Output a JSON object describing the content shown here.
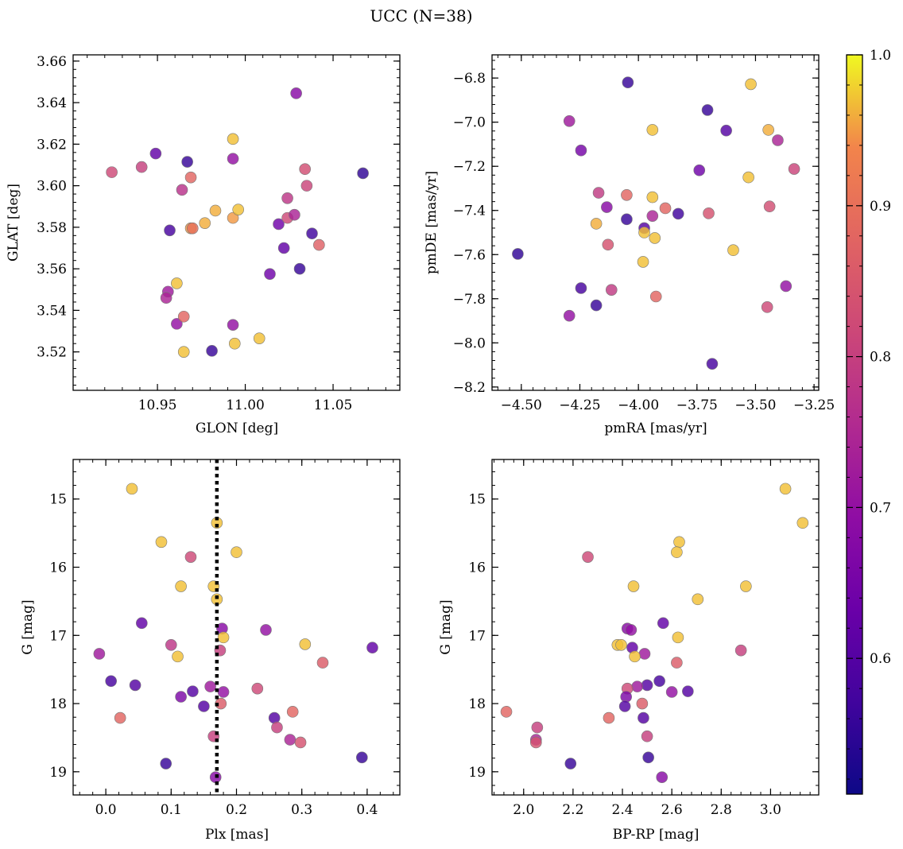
{
  "figure": {
    "title": "UCC (N=38)",
    "colormap": "plasma",
    "colorbar": {
      "min": 0.51,
      "max": 1.0,
      "ticks": [
        "0.6",
        "0.7",
        "0.8",
        "0.9",
        "1.0"
      ]
    }
  },
  "chart_data": [
    {
      "type": "scatter",
      "xlabel": "GLON [deg]",
      "ylabel": "GLAT [deg]",
      "xlim": [
        10.902,
        11.088
      ],
      "ylim": [
        3.5015,
        3.663
      ],
      "xticks": [
        "10.95",
        "11.00",
        "11.05"
      ],
      "yticks": [
        "3.52",
        "3.54",
        "3.56",
        "3.58",
        "3.60",
        "3.62",
        "3.64",
        "3.66"
      ],
      "points": [
        {
          "x": 10.924,
          "y": 3.6065,
          "c": 0.82
        },
        {
          "x": 10.941,
          "y": 3.609,
          "c": 0.8
        },
        {
          "x": 10.949,
          "y": 3.6155,
          "c": 0.62
        },
        {
          "x": 10.967,
          "y": 3.6115,
          "c": 0.56
        },
        {
          "x": 10.964,
          "y": 3.598,
          "c": 0.77
        },
        {
          "x": 10.969,
          "y": 3.604,
          "c": 0.88
        },
        {
          "x": 10.957,
          "y": 3.5785,
          "c": 0.58
        },
        {
          "x": 10.969,
          "y": 3.5795,
          "c": 0.95
        },
        {
          "x": 10.97,
          "y": 3.5795,
          "c": 0.9
        },
        {
          "x": 10.977,
          "y": 3.582,
          "c": 0.96
        },
        {
          "x": 10.983,
          "y": 3.588,
          "c": 0.96
        },
        {
          "x": 10.993,
          "y": 3.6225,
          "c": 0.97
        },
        {
          "x": 10.993,
          "y": 3.613,
          "c": 0.7
        },
        {
          "x": 10.993,
          "y": 3.5845,
          "c": 0.95
        },
        {
          "x": 10.996,
          "y": 3.5885,
          "c": 0.97
        },
        {
          "x": 10.961,
          "y": 3.553,
          "c": 0.97
        },
        {
          "x": 10.956,
          "y": 3.549,
          "c": 0.72
        },
        {
          "x": 10.955,
          "y": 3.546,
          "c": 0.74
        },
        {
          "x": 10.961,
          "y": 3.5335,
          "c": 0.7
        },
        {
          "x": 10.965,
          "y": 3.537,
          "c": 0.88
        },
        {
          "x": 10.965,
          "y": 3.52,
          "c": 0.97
        },
        {
          "x": 10.981,
          "y": 3.5205,
          "c": 0.56
        },
        {
          "x": 10.993,
          "y": 3.533,
          "c": 0.7
        },
        {
          "x": 10.994,
          "y": 3.524,
          "c": 0.97
        },
        {
          "x": 11.008,
          "y": 3.5265,
          "c": 0.97
        },
        {
          "x": 11.014,
          "y": 3.5575,
          "c": 0.64
        },
        {
          "x": 11.019,
          "y": 3.5815,
          "c": 0.64
        },
        {
          "x": 11.022,
          "y": 3.57,
          "c": 0.62
        },
        {
          "x": 11.024,
          "y": 3.594,
          "c": 0.78
        },
        {
          "x": 11.024,
          "y": 3.5845,
          "c": 0.82
        },
        {
          "x": 11.028,
          "y": 3.586,
          "c": 0.74
        },
        {
          "x": 11.029,
          "y": 3.6445,
          "c": 0.68
        },
        {
          "x": 11.031,
          "y": 3.56,
          "c": 0.56
        },
        {
          "x": 11.034,
          "y": 3.608,
          "c": 0.83
        },
        {
          "x": 11.035,
          "y": 3.6,
          "c": 0.81
        },
        {
          "x": 11.038,
          "y": 3.577,
          "c": 0.57
        },
        {
          "x": 11.042,
          "y": 3.5715,
          "c": 0.87
        },
        {
          "x": 11.067,
          "y": 3.606,
          "c": 0.55
        }
      ]
    },
    {
      "type": "scatter",
      "xlabel": "pmRA [mas/yr]",
      "ylabel": "pmDE [mas/yr]",
      "xlim": [
        -4.625,
        -3.23
      ],
      "ylim": [
        -8.215,
        -6.695
      ],
      "xticks": [
        "−4.50",
        "−4.25",
        "−4.00",
        "−3.75",
        "−3.50",
        "−3.25"
      ],
      "yticks": [
        "−8.2",
        "−8.0",
        "−7.8",
        "−7.6",
        "−7.4",
        "−7.2",
        "−7.0",
        "−6.8"
      ],
      "points": [
        {
          "x": -4.515,
          "y": -7.597,
          "c": 0.55
        },
        {
          "x": -4.295,
          "y": -6.995,
          "c": 0.72
        },
        {
          "x": -4.295,
          "y": -7.877,
          "c": 0.7
        },
        {
          "x": -4.245,
          "y": -7.128,
          "c": 0.65
        },
        {
          "x": -4.245,
          "y": -7.752,
          "c": 0.58
        },
        {
          "x": -4.17,
          "y": -7.32,
          "c": 0.79
        },
        {
          "x": -4.18,
          "y": -7.46,
          "c": 0.96
        },
        {
          "x": -4.135,
          "y": -7.385,
          "c": 0.68
        },
        {
          "x": -4.13,
          "y": -7.555,
          "c": 0.84
        },
        {
          "x": -4.115,
          "y": -7.76,
          "c": 0.79
        },
        {
          "x": -4.18,
          "y": -7.83,
          "c": 0.56
        },
        {
          "x": -4.045,
          "y": -6.82,
          "c": 0.56
        },
        {
          "x": -4.05,
          "y": -7.33,
          "c": 0.88
        },
        {
          "x": -4.05,
          "y": -7.44,
          "c": 0.56
        },
        {
          "x": -3.975,
          "y": -7.48,
          "c": 0.6
        },
        {
          "x": -3.975,
          "y": -7.5,
          "c": 0.97
        },
        {
          "x": -3.98,
          "y": -7.633,
          "c": 0.97
        },
        {
          "x": -3.94,
          "y": -7.035,
          "c": 0.97
        },
        {
          "x": -3.94,
          "y": -7.34,
          "c": 0.97
        },
        {
          "x": -3.94,
          "y": -7.425,
          "c": 0.74
        },
        {
          "x": -3.93,
          "y": -7.525,
          "c": 0.97
        },
        {
          "x": -3.925,
          "y": -7.79,
          "c": 0.88
        },
        {
          "x": -3.885,
          "y": -7.39,
          "c": 0.88
        },
        {
          "x": -3.83,
          "y": -7.415,
          "c": 0.57
        },
        {
          "x": -3.74,
          "y": -7.218,
          "c": 0.64
        },
        {
          "x": -3.705,
          "y": -6.945,
          "c": 0.56
        },
        {
          "x": -3.7,
          "y": -7.413,
          "c": 0.84
        },
        {
          "x": -3.685,
          "y": -8.095,
          "c": 0.58
        },
        {
          "x": -3.625,
          "y": -7.038,
          "c": 0.6
        },
        {
          "x": -3.595,
          "y": -7.58,
          "c": 0.97
        },
        {
          "x": -3.52,
          "y": -6.828,
          "c": 0.97
        },
        {
          "x": -3.53,
          "y": -7.25,
          "c": 0.97
        },
        {
          "x": -3.445,
          "y": -7.035,
          "c": 0.96
        },
        {
          "x": -3.45,
          "y": -7.838,
          "c": 0.82
        },
        {
          "x": -3.44,
          "y": -7.382,
          "c": 0.83
        },
        {
          "x": -3.405,
          "y": -7.082,
          "c": 0.74
        },
        {
          "x": -3.37,
          "y": -7.743,
          "c": 0.7
        },
        {
          "x": -3.335,
          "y": -7.212,
          "c": 0.81
        }
      ]
    },
    {
      "type": "scatter",
      "xlabel": "Plx [mas]",
      "ylabel": "G [mag]",
      "xlim": [
        -0.05,
        0.45
      ],
      "ylim": [
        19.34,
        14.42
      ],
      "xticks": [
        "0.0",
        "0.1",
        "0.2",
        "0.3",
        "0.4"
      ],
      "yticks": [
        "15",
        "16",
        "17",
        "18",
        "19"
      ],
      "vline": {
        "x": 0.17,
        "style": "dotted"
      },
      "points": [
        {
          "x": 0.04,
          "y": 14.85,
          "c": 0.97
        },
        {
          "x": 0.085,
          "y": 15.63,
          "c": 0.97
        },
        {
          "x": 0.17,
          "y": 15.35,
          "c": 0.97
        },
        {
          "x": 0.2,
          "y": 15.78,
          "c": 0.97
        },
        {
          "x": 0.13,
          "y": 15.85,
          "c": 0.82
        },
        {
          "x": 0.115,
          "y": 16.28,
          "c": 0.97
        },
        {
          "x": 0.165,
          "y": 16.28,
          "c": 0.97
        },
        {
          "x": 0.17,
          "y": 16.47,
          "c": 0.97
        },
        {
          "x": 0.055,
          "y": 16.82,
          "c": 0.62
        },
        {
          "x": 0.178,
          "y": 16.9,
          "c": 0.68
        },
        {
          "x": 0.245,
          "y": 16.92,
          "c": 0.7
        },
        {
          "x": 0.18,
          "y": 17.03,
          "c": 0.97
        },
        {
          "x": 0.1,
          "y": 17.14,
          "c": 0.78
        },
        {
          "x": 0.175,
          "y": 17.22,
          "c": 0.8
        },
        {
          "x": 0.305,
          "y": 17.13,
          "c": 0.97
        },
        {
          "x": 0.408,
          "y": 17.18,
          "c": 0.62
        },
        {
          "x": -0.01,
          "y": 17.27,
          "c": 0.72
        },
        {
          "x": 0.11,
          "y": 17.31,
          "c": 0.97
        },
        {
          "x": 0.332,
          "y": 17.4,
          "c": 0.86
        },
        {
          "x": 0.008,
          "y": 17.67,
          "c": 0.58
        },
        {
          "x": 0.045,
          "y": 17.73,
          "c": 0.6
        },
        {
          "x": 0.16,
          "y": 17.75,
          "c": 0.72
        },
        {
          "x": 0.133,
          "y": 17.82,
          "c": 0.6
        },
        {
          "x": 0.18,
          "y": 17.83,
          "c": 0.7
        },
        {
          "x": 0.232,
          "y": 17.78,
          "c": 0.82
        },
        {
          "x": 0.115,
          "y": 17.9,
          "c": 0.66
        },
        {
          "x": 0.15,
          "y": 18.04,
          "c": 0.6
        },
        {
          "x": 0.176,
          "y": 18.0,
          "c": 0.86
        },
        {
          "x": 0.022,
          "y": 18.21,
          "c": 0.88
        },
        {
          "x": 0.258,
          "y": 18.21,
          "c": 0.6
        },
        {
          "x": 0.262,
          "y": 18.35,
          "c": 0.8
        },
        {
          "x": 0.286,
          "y": 18.12,
          "c": 0.88
        },
        {
          "x": 0.165,
          "y": 18.48,
          "c": 0.8
        },
        {
          "x": 0.282,
          "y": 18.53,
          "c": 0.74
        },
        {
          "x": 0.298,
          "y": 18.57,
          "c": 0.84
        },
        {
          "x": 0.092,
          "y": 18.88,
          "c": 0.56
        },
        {
          "x": 0.392,
          "y": 18.79,
          "c": 0.56
        },
        {
          "x": 0.168,
          "y": 19.08,
          "c": 0.68
        }
      ]
    },
    {
      "type": "scatter",
      "xlabel": "BP-RP [mag]",
      "ylabel": "G [mag]",
      "xlim": [
        1.872,
        3.195
      ],
      "ylim": [
        19.34,
        14.42
      ],
      "xticks": [
        "2.0",
        "2.2",
        "2.4",
        "2.6",
        "2.8",
        "3.0"
      ],
      "yticks": [
        "15",
        "16",
        "17",
        "18",
        "19"
      ],
      "points": [
        {
          "x": 3.06,
          "y": 14.85,
          "c": 0.97
        },
        {
          "x": 3.13,
          "y": 15.35,
          "c": 0.97
        },
        {
          "x": 2.63,
          "y": 15.63,
          "c": 0.97
        },
        {
          "x": 2.62,
          "y": 15.78,
          "c": 0.97
        },
        {
          "x": 2.26,
          "y": 15.85,
          "c": 0.82
        },
        {
          "x": 2.445,
          "y": 16.28,
          "c": 0.97
        },
        {
          "x": 2.9,
          "y": 16.28,
          "c": 0.97
        },
        {
          "x": 2.705,
          "y": 16.47,
          "c": 0.97
        },
        {
          "x": 2.565,
          "y": 16.82,
          "c": 0.62
        },
        {
          "x": 2.42,
          "y": 16.9,
          "c": 0.68
        },
        {
          "x": 2.435,
          "y": 16.92,
          "c": 0.7
        },
        {
          "x": 2.625,
          "y": 17.03,
          "c": 0.97
        },
        {
          "x": 2.38,
          "y": 17.14,
          "c": 0.97
        },
        {
          "x": 2.395,
          "y": 17.14,
          "c": 0.97
        },
        {
          "x": 2.44,
          "y": 17.18,
          "c": 0.62
        },
        {
          "x": 2.88,
          "y": 17.22,
          "c": 0.8
        },
        {
          "x": 2.49,
          "y": 17.27,
          "c": 0.72
        },
        {
          "x": 2.45,
          "y": 17.31,
          "c": 0.97
        },
        {
          "x": 2.62,
          "y": 17.4,
          "c": 0.86
        },
        {
          "x": 2.55,
          "y": 17.67,
          "c": 0.58
        },
        {
          "x": 2.5,
          "y": 17.73,
          "c": 0.6
        },
        {
          "x": 2.46,
          "y": 17.75,
          "c": 0.72
        },
        {
          "x": 2.42,
          "y": 17.78,
          "c": 0.82
        },
        {
          "x": 2.6,
          "y": 17.83,
          "c": 0.7
        },
        {
          "x": 2.665,
          "y": 17.82,
          "c": 0.6
        },
        {
          "x": 2.415,
          "y": 17.9,
          "c": 0.66
        },
        {
          "x": 2.48,
          "y": 18.0,
          "c": 0.86
        },
        {
          "x": 2.41,
          "y": 18.04,
          "c": 0.6
        },
        {
          "x": 1.93,
          "y": 18.12,
          "c": 0.88
        },
        {
          "x": 2.345,
          "y": 18.21,
          "c": 0.88
        },
        {
          "x": 2.485,
          "y": 18.21,
          "c": 0.6
        },
        {
          "x": 2.055,
          "y": 18.35,
          "c": 0.8
        },
        {
          "x": 2.5,
          "y": 18.48,
          "c": 0.8
        },
        {
          "x": 2.05,
          "y": 18.53,
          "c": 0.74
        },
        {
          "x": 2.05,
          "y": 18.57,
          "c": 0.84
        },
        {
          "x": 2.19,
          "y": 18.88,
          "c": 0.56
        },
        {
          "x": 2.505,
          "y": 18.79,
          "c": 0.56
        },
        {
          "x": 2.56,
          "y": 19.08,
          "c": 0.68
        }
      ]
    }
  ]
}
